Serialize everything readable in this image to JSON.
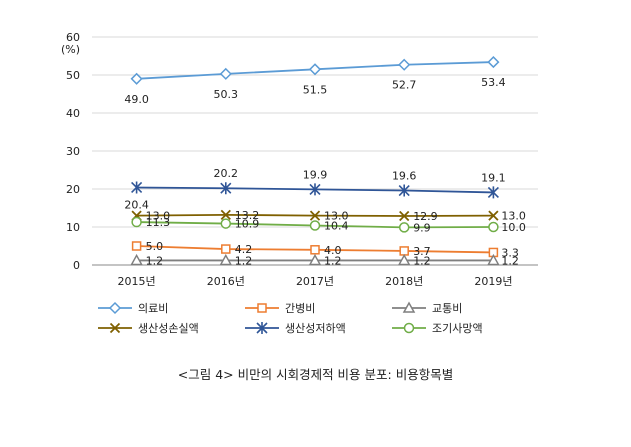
{
  "chart_data": {
    "type": "line",
    "categories": [
      "2015년",
      "2016년",
      "2017년",
      "2018년",
      "2019년"
    ],
    "ylabel": "(%)",
    "ylim": [
      0,
      60
    ],
    "yticks": [
      0,
      10,
      20,
      30,
      40,
      50,
      60
    ],
    "grid": true,
    "legend_position": "bottom",
    "series": [
      {
        "name": "의료비",
        "color": "#5b9bd5",
        "marker": "diamond",
        "values": [
          49.0,
          50.3,
          51.5,
          52.7,
          53.4
        ],
        "labels": [
          "49.0",
          "50.3",
          "51.5",
          "52.7",
          "53.4"
        ],
        "label_pos": "below"
      },
      {
        "name": "간병비",
        "color": "#ed7d31",
        "marker": "square",
        "values": [
          5.0,
          4.2,
          4.0,
          3.7,
          3.3
        ],
        "labels": [
          "5.0",
          "4.2",
          "4.0",
          "3.7",
          "3.3"
        ],
        "label_pos": "right"
      },
      {
        "name": "교통비",
        "color": "#7f7f7f",
        "marker": "triangle",
        "values": [
          1.2,
          1.2,
          1.2,
          1.2,
          1.2
        ],
        "labels": [
          "1.2",
          "1.2",
          "1.2",
          "1.2",
          "1.2"
        ],
        "label_pos": "right"
      },
      {
        "name": "생산성손실액",
        "color": "#7f6000",
        "marker": "x",
        "values": [
          13.0,
          13.2,
          13.0,
          12.9,
          13.0
        ],
        "labels": [
          "13.0",
          "13.2",
          "13.0",
          "12.9",
          "13.0"
        ],
        "label_pos": "right"
      },
      {
        "name": "생산성저하액",
        "color": "#2f5597",
        "marker": "star",
        "values": [
          20.4,
          20.2,
          19.9,
          19.6,
          19.1
        ],
        "labels": [
          "20.4",
          "20.2",
          "19.9",
          "19.6",
          "19.1"
        ],
        "label_pos": "mixed"
      },
      {
        "name": "조기사망액",
        "color": "#70ad47",
        "marker": "circle",
        "values": [
          11.3,
          10.9,
          10.4,
          9.9,
          10.0
        ],
        "labels": [
          "11.3",
          "10.9",
          "10.4",
          "9.9",
          "10.0"
        ],
        "label_pos": "right"
      }
    ]
  },
  "caption": "<그림 4> 비만의 시회경제적 비용 분포: 비용항목별"
}
